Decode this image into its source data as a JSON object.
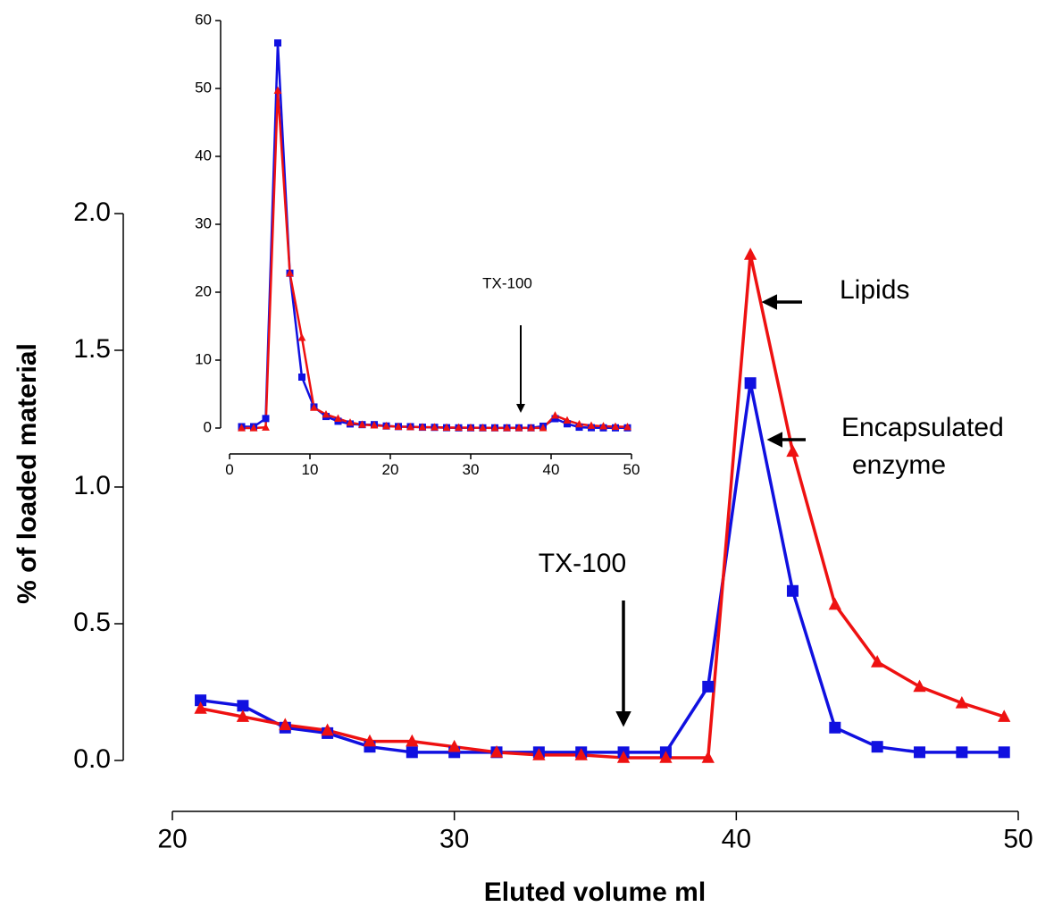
{
  "chart_data": [
    {
      "type": "line",
      "x_label": "Eluted volume ml",
      "y_label": "% of loaded material",
      "x": [
        21,
        22.5,
        24,
        25.5,
        27,
        28.5,
        30,
        31.5,
        33,
        34.5,
        36,
        37.5,
        39,
        40.5,
        42,
        43.5,
        45,
        46.5,
        48,
        49.5
      ],
      "series": [
        {
          "color": "#1010e0",
          "marker": "square",
          "values": [
            0.22,
            0.2,
            0.12,
            0.1,
            0.05,
            0.03,
            0.03,
            0.03,
            0.03,
            0.03,
            0.03,
            0.03,
            0.27,
            1.38,
            0.62,
            0.12,
            0.05,
            0.03,
            0.03,
            0.03
          ]
        },
        {
          "color": "#ee1111",
          "marker": "triangle",
          "values": [
            0.19,
            0.16,
            0.13,
            0.11,
            0.07,
            0.07,
            0.05,
            0.03,
            0.02,
            0.02,
            0.01,
            0.01,
            0.01,
            1.85,
            1.13,
            0.57,
            0.36,
            0.27,
            0.21,
            0.16
          ]
        }
      ],
      "xlim": [
        20,
        50
      ],
      "xticks": [
        20,
        30,
        40,
        50
      ],
      "ylim": [
        0,
        2
      ],
      "yticks": [
        {
          "value": 0,
          "label": "0.0"
        },
        {
          "value": 0.5,
          "label": "0.5"
        },
        {
          "value": 1,
          "label": "1.0"
        },
        {
          "value": 1.5,
          "label": "1.5"
        },
        {
          "value": 2,
          "label": "2.0"
        }
      ],
      "annotations": [
        {
          "text": [
            "TX-100"
          ]
        },
        {
          "text": [
            "Lipids"
          ]
        },
        {
          "text": [
            "Encapsulated",
            "enzyme"
          ]
        }
      ]
    },
    {
      "type": "line",
      "x": [
        1.5,
        3,
        4.5,
        6,
        7.5,
        9,
        10.5,
        12,
        13.5,
        15,
        16.5,
        18,
        19.5,
        21,
        22.5,
        24,
        25.5,
        27,
        28.5,
        30,
        31.5,
        33,
        34.5,
        36,
        37.5,
        39,
        40.5,
        42,
        43.5,
        45,
        46.5,
        48,
        49.5
      ],
      "series": [
        {
          "color": "#1010e0",
          "marker": "square",
          "values": [
            0.2,
            0.2,
            1.4,
            56.7,
            22.8,
            7.5,
            3.1,
            1.7,
            1.0,
            0.6,
            0.5,
            0.5,
            0.3,
            0.22,
            0.2,
            0.12,
            0.1,
            0.05,
            0.03,
            0.03,
            0.03,
            0.03,
            0.03,
            0.03,
            0.03,
            0.27,
            1.38,
            0.62,
            0.12,
            0.05,
            0.03,
            0.03,
            0.03
          ]
        },
        {
          "color": "#ee1111",
          "marker": "triangle",
          "values": [
            0,
            0,
            0.1,
            49.7,
            22.8,
            13.3,
            3,
            2,
            1.4,
            0.8,
            0.5,
            0.4,
            0.3,
            0.19,
            0.16,
            0.13,
            0.11,
            0.07,
            0.07,
            0.05,
            0.03,
            0.02,
            0.02,
            0.01,
            0.01,
            0.01,
            1.85,
            1.13,
            0.57,
            0.36,
            0.27,
            0.21,
            0.16
          ]
        }
      ],
      "xlim": [
        0,
        50
      ],
      "xticks": [
        0,
        10,
        20,
        30,
        40,
        50
      ],
      "ylim": [
        0,
        60
      ],
      "yticks": [
        0,
        10,
        20,
        30,
        40,
        50,
        60
      ],
      "annotations": [
        {
          "text": [
            "TX-100"
          ]
        }
      ]
    }
  ]
}
